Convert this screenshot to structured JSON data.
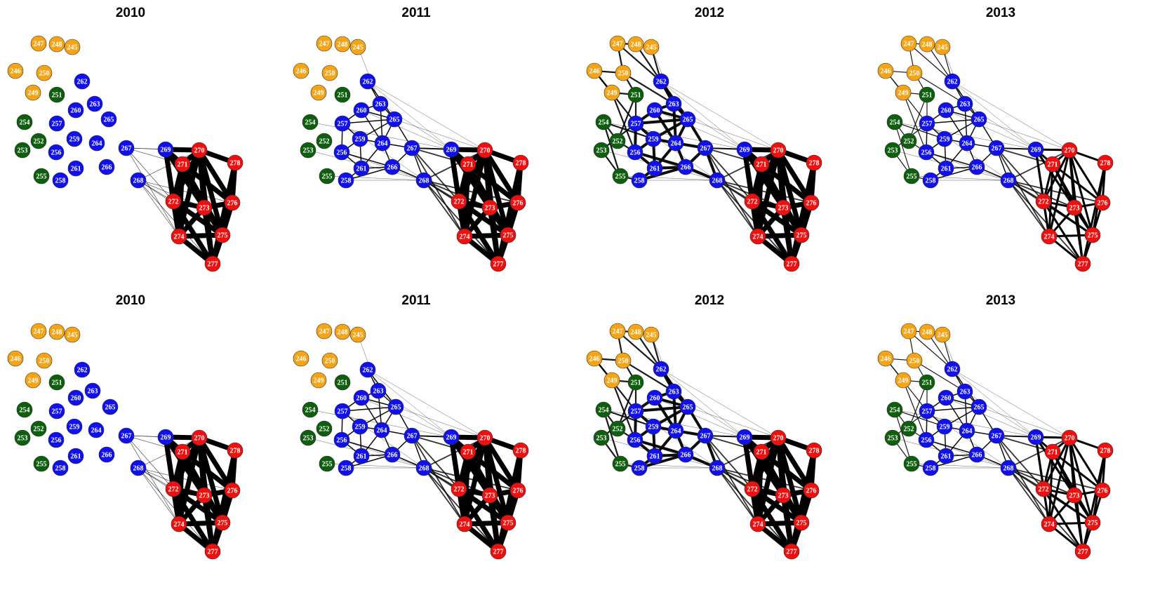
{
  "colors": {
    "orange": "#F5A416",
    "green": "#0D5E0D",
    "blue": "#0F0FF0",
    "red": "#F00E0E",
    "edge": "#000000",
    "node_border": "#2a2a2a",
    "label": "#ffffff"
  },
  "groups": {
    "orange": [
      "245",
      "246",
      "247",
      "248",
      "249",
      "250"
    ],
    "green": [
      "251",
      "252",
      "253",
      "254",
      "255"
    ],
    "blue": [
      "256",
      "257",
      "258",
      "259",
      "260",
      "261",
      "262",
      "263",
      "264",
      "265",
      "266",
      "267",
      "268",
      "269"
    ],
    "red": [
      "270",
      "271",
      "272",
      "273",
      "274",
      "275",
      "276",
      "277",
      "278"
    ]
  },
  "panels": [
    {
      "title": "2010",
      "row": 0,
      "col": 0,
      "layout": "base",
      "density": 0
    },
    {
      "title": "2011",
      "row": 0,
      "col": 1,
      "layout": "base",
      "density": 1
    },
    {
      "title": "2012",
      "row": 0,
      "col": 2,
      "layout": "base",
      "density": 3
    },
    {
      "title": "2013",
      "row": 0,
      "col": 3,
      "layout": "base",
      "density": 2
    },
    {
      "title": "2010",
      "row": 1,
      "col": 0,
      "layout": "diag",
      "density": 0
    },
    {
      "title": "2011",
      "row": 1,
      "col": 1,
      "layout": "diag",
      "density": 1
    },
    {
      "title": "2012",
      "row": 1,
      "col": 2,
      "layout": "base",
      "density": 3
    },
    {
      "title": "2013",
      "row": 1,
      "col": 3,
      "layout": "base",
      "density": 2
    }
  ]
}
